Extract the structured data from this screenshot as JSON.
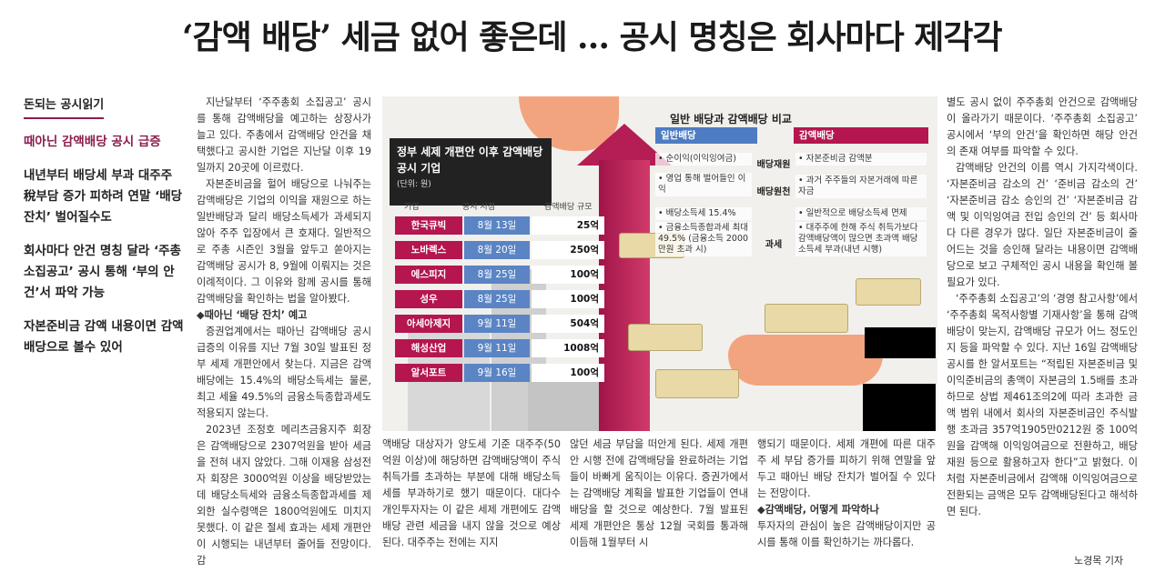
{
  "headline": "‘감액 배당’ 세금 없어 좋은데 … 공시 명칭은 회사마다 제각각",
  "sidebar": {
    "tag": "돈되는 공시읽기",
    "items": [
      "때아닌 감액배당 공시 급증",
      "내년부터 배당세 부과 대주주 稅부담 증가 피하려 연말 ‘배당 잔치’ 벌어질수도",
      "회사마다 안건 명칭 달라 ‘주총 소집공고’ 공시 통해 ‘부의 안건’서 파악 가능",
      "자본준비금 감액 내용이면 감액배당으로 볼수 있어"
    ]
  },
  "col1": [
    "지난달부터 ‘주주총회 소집공고’ 공시를 통해 감액배당을 예고하는 상장사가 늘고 있다. 주총에서 감액배당 안건을 채택했다고 공시한 기업은 지난달 이후 19일까지 20곳에 이르렀다.",
    "자본준비금을 헐어 배당으로 나눠주는 감액배당은 기업의 이익을 재원으로 하는 일반배당과 달리 배당소득세가 과세되지 않아 주주 입장에서 큰 호재다. 일반적으로 주총 시즌인 3월을 앞두고 쏟아지는 감액배당 공시가 8, 9월에 이뤄지는 것은 이례적이다. 그 이유와 함께 공시를 통해 감액배당을 확인하는 법을 알아봤다."
  ],
  "col1_sub": "◆때아닌 ‘배당 잔치’ 예고",
  "col1_b": [
    "증권업계에서는 때아닌 감액배당 공시 급증의 이유를 지난 7월 30일 발표된 정부 세제 개편안에서 찾는다. 지금은 감액배당에는 15.4%의 배당소득세는 물론, 최고 세율 49.5%의 금융소득종합과세도 적용되지 않는다.",
    "2023년 조정호 메리츠금융지주 회장은 감액배당으로 2307억원을 받아 세금을 전혀 내지 않았다. 그해 이재용 삼성전자 회장은 3000억원 이상을 배당받았는데 배당소득세와 금융소득종합과세를 제외한 실수령액은 1800억원에도 미치지 못했다. 이 같은 절세 효과는 세제 개편안이 시행되는 내년부터 줄어들 전망이다. 감"
  ],
  "col2": "액배당 대상자가 양도세 기준 대주주(50억원 이상)에 해당하면 감액배당액이 주식 취득가를 초과하는 부분에 대해 배당소득세를 부과하기로 했기 때문이다. 대다수 개인투자자는 이 같은 세제 개편에도 감액배당 관련 세금을 내지 않을 것으로 예상된다. 대주주는 전에는 지지",
  "col3": "않던 세금 부담을 떠안게 된다. 세제 개편안 시행 전에 감액배당을 완료하려는 기업들이 바빠게 움직이는 이유다. 증권가에서는 감액배당 계획을 발표한 기업들이 연내 배당을 할 것으로 예상한다. 7월 발표된 세제 개편안은 통상 12월 국회를 통과해 이듬해 1월부터 시",
  "col4": "행되기 때문이다. 세제 개편에 따른 대주주 세 부담 증가를 피하기 위해 연말을 앞두고 때아닌 배당 잔치가 벌어질 수 있다는 전망이다.",
  "col4_sub": "◆감액배당, 어떻게 파악하나",
  "col4_b": "투자자의 관심이 높은 감액배당이지만 공시를 통해 이를 확인하기는 까다롭다.",
  "col5": [
    "별도 공시 없이 주주총회 안건으로 감액배당이 올라가기 때문이다. ‘주주총회 소집공고’ 공시에서 ‘부의 안건’을 확인하면 해당 안건의 존재 여부를 파악할 수 있다.",
    "감액배당 안건의 이름 역시 가지각색이다. ‘자본준비금 감소의 건’ ‘준비금 감소의 건’ ‘자본준비금 감소 승인의 건’ ‘자본준비금 감액 및 이익잉여금 전입 승인의 건’ 등 회사마다 다른 경우가 많다. 일단 자본준비금이 줄어드는 것을 승인해 달라는 내용이면 감액배당으로 보고 구체적인 공시 내용을 확인해 볼 필요가 있다.",
    "‘주주총회 소집공고’의 ‘경영 참고사항’에서 ‘주주총회 목적사항별 기재사항’을 통해 감액배당이 맞는지, 감액배당 규모가 어느 정도인지 등을 파악할 수 있다. 지난 16일 감액배당 공시를 한 알서포트는 “적립된 자본준비금 및 이익준비금의 총액이 자본금의 1.5배를 초과하므로 상법 제461조의2에 따라 초과한 금액 범위 내에서 회사의 자본준비금인 주식발행 초과금 357억1905만0212원 중 100억원을 감액해 이익잉여금으로 전환하고, 배당 재원 등으로 활용하고자 한다”고 밝혔다. 이처럼 자본준비금에서 감액해 이익잉여금으로 전환되는 금액은 모두 감액배당된다고 해석하면 된다."
  ],
  "byline": "노경목 기자",
  "table": {
    "title": "정부 세제 개편안 이후 감액배당 공시 기업",
    "unit": "(단위: 원)",
    "headers": [
      "기업",
      "공시 시점",
      "감액배당 규모"
    ],
    "rows": [
      {
        "company": "한국큐빅",
        "date": "8월 13일",
        "amount": "25억"
      },
      {
        "company": "노바렉스",
        "date": "8월 20일",
        "amount": "250억"
      },
      {
        "company": "에스피지",
        "date": "8월 25일",
        "amount": "100억"
      },
      {
        "company": "성우",
        "date": "8월 25일",
        "amount": "100억"
      },
      {
        "company": "아세아제지",
        "date": "9월 11일",
        "amount": "504억"
      },
      {
        "company": "해성산업",
        "date": "9월 11일",
        "amount": "1008억"
      },
      {
        "company": "알서포트",
        "date": "9월 16일",
        "amount": "100억"
      }
    ]
  },
  "compare": {
    "title": "일반 배당과 감액배당 비교",
    "col_a": "일반배당",
    "col_b": "감액배당",
    "labels": [
      "배당재원",
      "배당원천",
      "과세"
    ],
    "a_cells": [
      "• 순이익(이익잉여금)",
      "• 영업 통해 벌어들인 이익",
      "• 배당소득세 15.4%",
      "• 금융소득종합과세 최대 49.5% (금융소득 2000만원 초과 시)"
    ],
    "b_cells": [
      "• 자본준비금 감액분",
      "• 과거 주주들의 자본거래에 따른 자금",
      "• 일반적으로 배당소득세 면제",
      "• 대주주에 한해 주식 취득가보다 감액배당액이 많으면 초과액 배당소득세 부과(내년 시행)"
    ]
  }
}
